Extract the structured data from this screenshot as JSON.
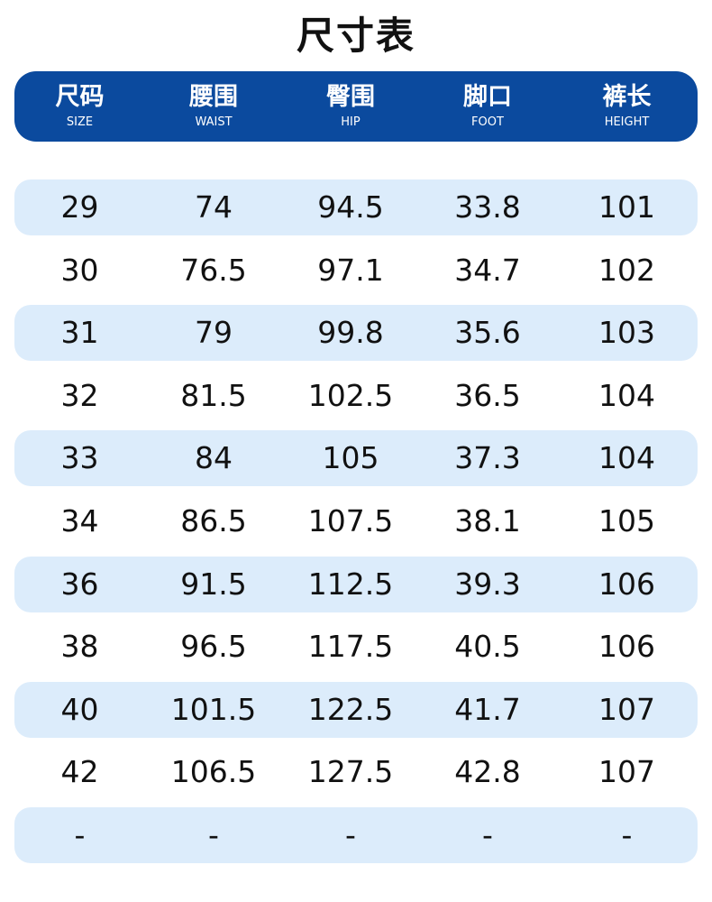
{
  "title": "尺寸表",
  "colors": {
    "header_bg": "#0b4a9e",
    "row_shade": "#dcecfb",
    "text": "#111111"
  },
  "columns": [
    {
      "zh": "尺码",
      "en": "SIZE"
    },
    {
      "zh": "腰围",
      "en": "WAIST"
    },
    {
      "zh": "臀围",
      "en": "HIP"
    },
    {
      "zh": "脚口",
      "en": "FOOT"
    },
    {
      "zh": "裤长",
      "en": "HEIGHT"
    }
  ],
  "rows": [
    [
      "29",
      "74",
      "94.5",
      "33.8",
      "101"
    ],
    [
      "30",
      "76.5",
      "97.1",
      "34.7",
      "102"
    ],
    [
      "31",
      "79",
      "99.8",
      "35.6",
      "103"
    ],
    [
      "32",
      "81.5",
      "102.5",
      "36.5",
      "104"
    ],
    [
      "33",
      "84",
      "105",
      "37.3",
      "104"
    ],
    [
      "34",
      "86.5",
      "107.5",
      "38.1",
      "105"
    ],
    [
      "36",
      "91.5",
      "112.5",
      "39.3",
      "106"
    ],
    [
      "38",
      "96.5",
      "117.5",
      "40.5",
      "106"
    ],
    [
      "40",
      "101.5",
      "122.5",
      "41.7",
      "107"
    ],
    [
      "42",
      "106.5",
      "127.5",
      "42.8",
      "107"
    ],
    [
      "-",
      "-",
      "-",
      "-",
      "-"
    ]
  ]
}
